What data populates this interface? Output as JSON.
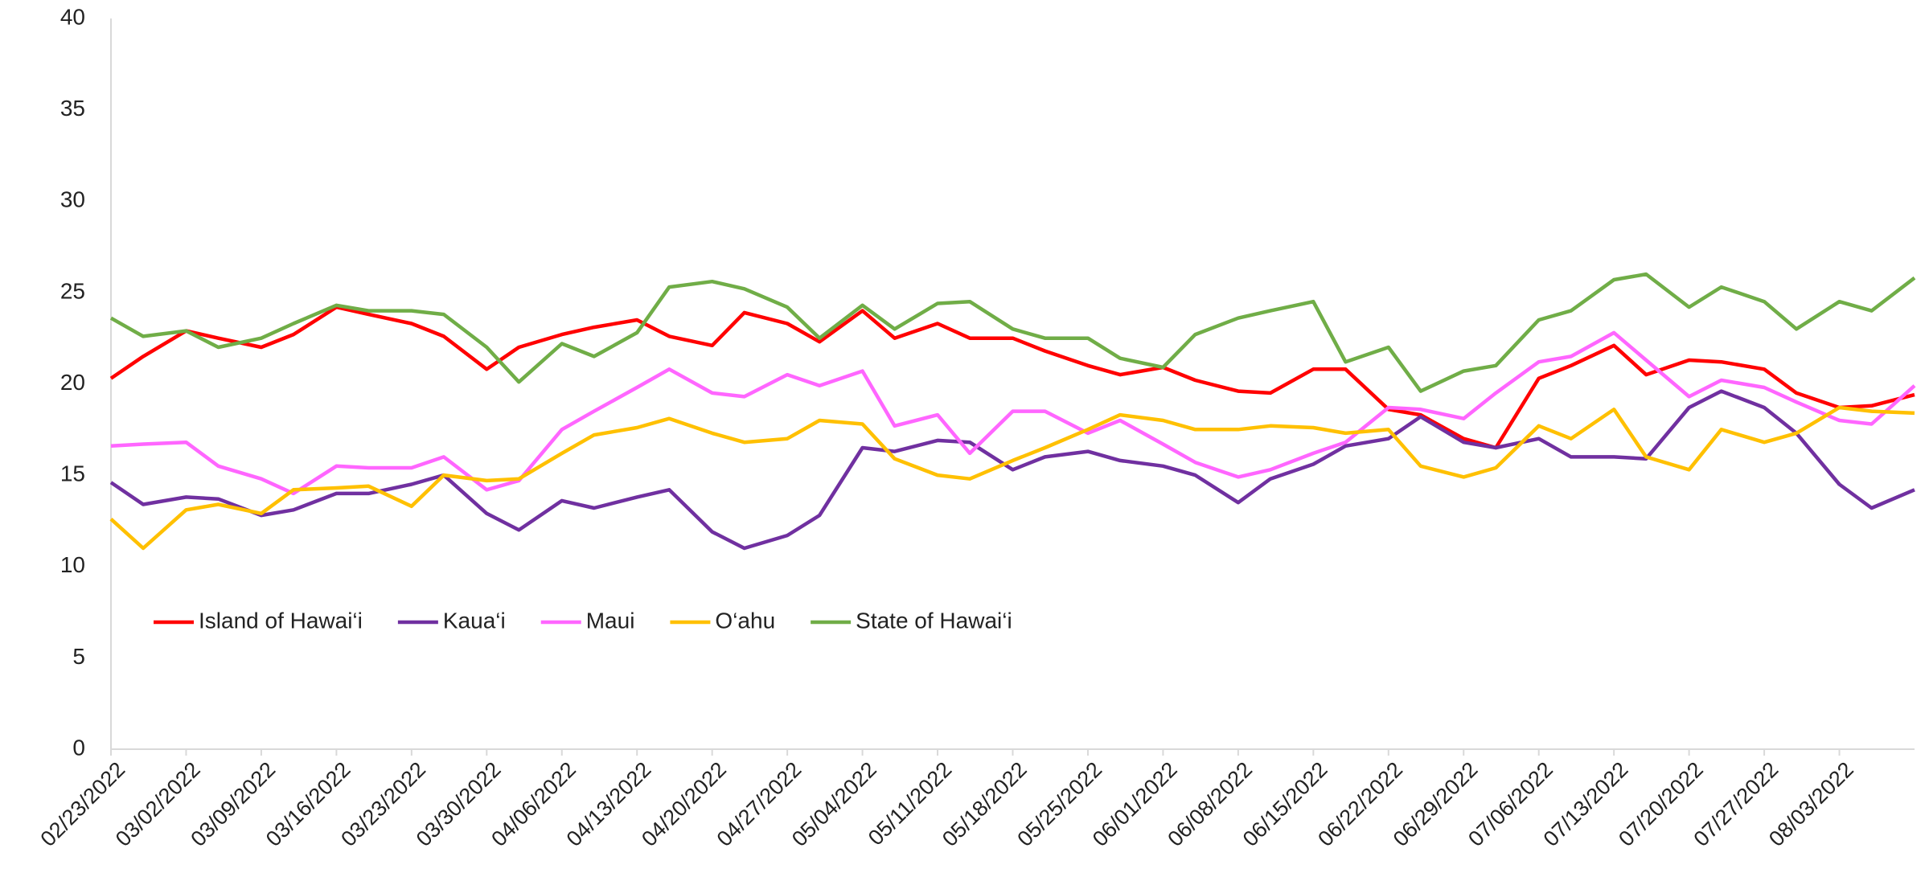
{
  "chart_data": {
    "type": "line",
    "x": [
      "02/23/2022",
      "02/26/2022",
      "03/02/2022",
      "03/05/2022",
      "03/09/2022",
      "03/12/2022",
      "03/16/2022",
      "03/19/2022",
      "03/23/2022",
      "03/26/2022",
      "03/30/2022",
      "04/02/2022",
      "04/06/2022",
      "04/09/2022",
      "04/13/2022",
      "04/16/2022",
      "04/20/2022",
      "04/23/2022",
      "04/27/2022",
      "04/30/2022",
      "05/04/2022",
      "05/07/2022",
      "05/11/2022",
      "05/14/2022",
      "05/18/2022",
      "05/21/2022",
      "05/25/2022",
      "05/28/2022",
      "06/01/2022",
      "06/04/2022",
      "06/08/2022",
      "06/11/2022",
      "06/15/2022",
      "06/18/2022",
      "06/22/2022",
      "06/25/2022",
      "06/29/2022",
      "07/02/2022",
      "07/06/2022",
      "07/09/2022",
      "07/13/2022",
      "07/16/2022",
      "07/20/2022",
      "07/23/2022",
      "07/27/2022",
      "07/30/2022",
      "08/03/2022",
      "08/06/2022",
      "08/10/2022"
    ],
    "xticks": [
      "02/23/2022",
      "03/02/2022",
      "03/09/2022",
      "03/16/2022",
      "03/23/2022",
      "03/30/2022",
      "04/06/2022",
      "04/13/2022",
      "04/20/2022",
      "04/27/2022",
      "05/04/2022",
      "05/11/2022",
      "05/18/2022",
      "05/25/2022",
      "06/01/2022",
      "06/08/2022",
      "06/15/2022",
      "06/22/2022",
      "06/29/2022",
      "07/06/2022",
      "07/13/2022",
      "07/20/2022",
      "07/27/2022",
      "08/03/2022"
    ],
    "ylim": [
      0,
      40
    ],
    "yticks": [
      0,
      5,
      10,
      15,
      20,
      25,
      30,
      35,
      40
    ],
    "grid": false,
    "legend": "inside-left",
    "series": [
      {
        "name": "Island of Hawai‘i",
        "color": "#ff0000",
        "values": [
          20.3,
          21.5,
          22.9,
          22.5,
          22.0,
          22.7,
          24.2,
          23.8,
          23.3,
          22.6,
          20.8,
          22.0,
          22.7,
          23.1,
          23.5,
          22.6,
          22.1,
          23.9,
          23.3,
          22.3,
          24.0,
          22.5,
          23.3,
          22.5,
          22.5,
          21.8,
          21.0,
          20.5,
          20.9,
          20.2,
          19.6,
          19.5,
          20.8,
          20.8,
          18.6,
          18.3,
          17.0,
          16.5,
          20.3,
          21.0,
          22.1,
          20.5,
          21.3,
          21.2,
          20.8,
          19.5,
          18.7,
          18.8,
          19.4
        ]
      },
      {
        "name": "Kaua‘i",
        "color": "#7030a0",
        "values": [
          14.6,
          13.4,
          13.8,
          13.7,
          12.8,
          13.1,
          14.0,
          14.0,
          14.5,
          15.0,
          12.9,
          12.0,
          13.6,
          13.2,
          13.8,
          14.2,
          11.9,
          11.0,
          11.7,
          12.8,
          16.5,
          16.3,
          16.9,
          16.8,
          15.3,
          16.0,
          16.3,
          15.8,
          15.5,
          15.0,
          13.5,
          14.8,
          15.6,
          16.6,
          17.0,
          18.2,
          16.8,
          16.5,
          17.0,
          16.0,
          16.0,
          15.9,
          18.7,
          19.6,
          18.7,
          17.3,
          14.5,
          13.2,
          14.2
        ]
      },
      {
        "name": "Maui",
        "color": "#ff66ff",
        "values": [
          16.6,
          16.7,
          16.8,
          15.5,
          14.8,
          14.0,
          15.5,
          15.4,
          15.4,
          16.0,
          14.2,
          14.7,
          17.5,
          18.5,
          19.8,
          20.8,
          19.5,
          19.3,
          20.5,
          19.9,
          20.7,
          17.7,
          18.3,
          16.2,
          18.5,
          18.5,
          17.3,
          18.0,
          16.7,
          15.7,
          14.9,
          15.3,
          16.2,
          16.8,
          18.7,
          18.6,
          18.1,
          19.5,
          21.2,
          21.5,
          22.8,
          21.3,
          19.3,
          20.2,
          19.8,
          19.0,
          18.0,
          17.8,
          19.9
        ]
      },
      {
        "name": "O‘ahu",
        "color": "#ffc000",
        "values": [
          12.6,
          11.0,
          13.1,
          13.4,
          12.9,
          14.2,
          14.3,
          14.4,
          13.3,
          15.0,
          14.7,
          14.8,
          16.2,
          17.2,
          17.6,
          18.1,
          17.3,
          16.8,
          17.0,
          18.0,
          17.8,
          15.9,
          15.0,
          14.8,
          15.8,
          16.5,
          17.5,
          18.3,
          18.0,
          17.5,
          17.5,
          17.7,
          17.6,
          17.3,
          17.5,
          15.5,
          14.9,
          15.4,
          17.7,
          17.0,
          18.6,
          16.0,
          15.3,
          17.5,
          16.8,
          17.3,
          18.7,
          18.5,
          18.4
        ]
      },
      {
        "name": "State of Hawai‘i",
        "color": "#70ad47",
        "values": [
          23.6,
          22.6,
          22.9,
          22.0,
          22.5,
          23.3,
          24.3,
          24.0,
          24.0,
          23.8,
          22.0,
          20.1,
          22.2,
          21.5,
          22.8,
          25.3,
          25.6,
          25.2,
          24.2,
          22.5,
          24.3,
          23.0,
          24.4,
          24.5,
          23.0,
          22.5,
          22.5,
          21.4,
          20.9,
          22.7,
          23.6,
          24.0,
          24.5,
          21.2,
          22.0,
          19.6,
          20.7,
          21.0,
          23.5,
          24.0,
          25.7,
          26.0,
          24.2,
          25.3,
          24.5,
          23.0,
          24.5,
          24.0,
          25.8
        ]
      }
    ]
  }
}
